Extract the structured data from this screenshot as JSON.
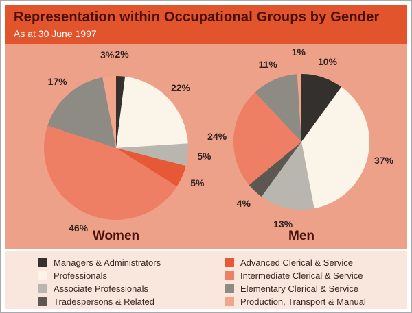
{
  "chart_data": {
    "type": "pie",
    "title": "Representation within Occupational Groups by Gender",
    "subtitle": "As at 30 June 1997",
    "label_suffix": "%",
    "legend_position": "bottom",
    "categories": [
      "Managers & Administrators",
      "Professionals",
      "Associate Professionals",
      "Tradespersons & Related",
      "Advanced Clerical & Service",
      "Intermediate Clerical & Service",
      "Elementary Clerical & Service",
      "Production, Transport & Manual"
    ],
    "colors": [
      "#33302e",
      "#fbf5e9",
      "#b9b5af",
      "#5c5750",
      "#e65836",
      "#ee7f64",
      "#8e8a84",
      "#f3a58c"
    ],
    "series": [
      {
        "name": "Women",
        "values": [
          2,
          22,
          5,
          0,
          5,
          46,
          17,
          3
        ]
      },
      {
        "name": "Men",
        "values": [
          10,
          37,
          13,
          4,
          0,
          24,
          11,
          1
        ]
      }
    ],
    "legend_columns": [
      [
        0,
        1,
        2,
        3
      ],
      [
        4,
        5,
        6,
        7
      ]
    ]
  },
  "theme": {
    "header_bg": "#e2542b",
    "title_color": "#49100a",
    "subtitle_color": "#ffffff",
    "chart_bg": "#eea189",
    "legend_bg": "#f9e7dd",
    "label_color": "#2e2320"
  }
}
